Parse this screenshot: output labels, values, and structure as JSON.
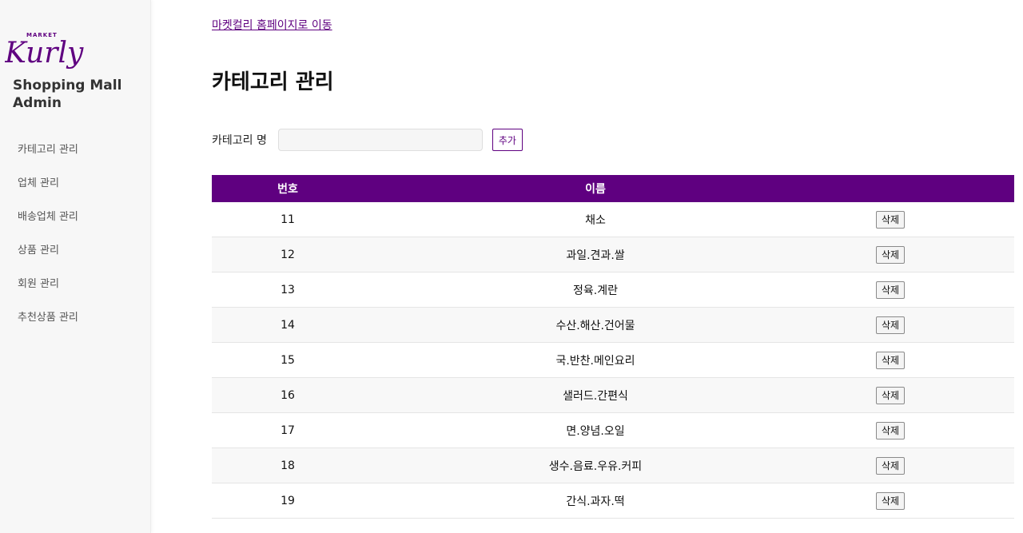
{
  "sidebar": {
    "logo": {
      "market": "MARKET",
      "wordmark": "Kurly",
      "color": "#5f0080"
    },
    "admin_title": "Shopping Mall Admin",
    "items": [
      {
        "label": "카테고리 관리"
      },
      {
        "label": "업체 관리"
      },
      {
        "label": "배송업체 관리"
      },
      {
        "label": "상품 관리"
      },
      {
        "label": "회원 관리"
      },
      {
        "label": "추천상품 관리"
      }
    ]
  },
  "main": {
    "home_link": "마켓컬리 홈페이지로 이동",
    "title": "카테고리 관리",
    "form": {
      "label": "카테고리 명",
      "input_value": "",
      "add_label": "추가"
    },
    "table": {
      "headers": {
        "number": "번호",
        "name": "이름",
        "action": ""
      },
      "delete_label": "삭제",
      "rows": [
        {
          "number": "11",
          "name": "채소"
        },
        {
          "number": "12",
          "name": "과일.견과.쌀"
        },
        {
          "number": "13",
          "name": "정육.계란"
        },
        {
          "number": "14",
          "name": "수산.해산.건어물"
        },
        {
          "number": "15",
          "name": "국.반찬.메인요리"
        },
        {
          "number": "16",
          "name": "샐러드.간편식"
        },
        {
          "number": "17",
          "name": "면.양념.오일"
        },
        {
          "number": "18",
          "name": "생수.음료.우유.커피"
        },
        {
          "number": "19",
          "name": "간식.과자.떡"
        }
      ]
    }
  },
  "colors": {
    "accent": "#5f0080"
  }
}
